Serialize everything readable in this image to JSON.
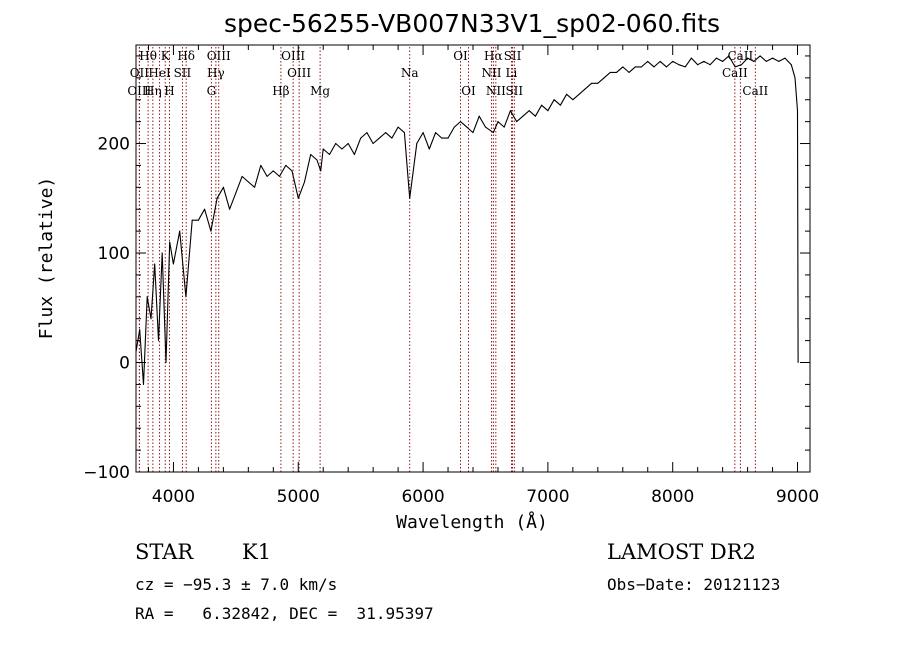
{
  "chart_data": {
    "type": "line",
    "title": "spec-56255-VB007N33V1_sp02-060.fits",
    "xlabel": "Wavelength (Å)",
    "ylabel": "Flux (relative)",
    "xlim": [
      3700,
      9100
    ],
    "ylim": [
      -100,
      290
    ],
    "xticks": [
      {
        "value": 4000,
        "label": "4000"
      },
      {
        "value": 5000,
        "label": "5000"
      },
      {
        "value": 6000,
        "label": "6000"
      },
      {
        "value": 7000,
        "label": "7000"
      },
      {
        "value": 8000,
        "label": "8000"
      },
      {
        "value": 9000,
        "label": "9000"
      }
    ],
    "yticks": [
      {
        "value": -100,
        "label": "−100"
      },
      {
        "value": 0,
        "label": "0"
      },
      {
        "value": 100,
        "label": "100"
      },
      {
        "value": 200,
        "label": "200"
      }
    ],
    "xminor_step": 200,
    "yminor_step": 20,
    "series": [
      {
        "name": "flux",
        "x": [
          3700,
          3730,
          3760,
          3790,
          3820,
          3850,
          3880,
          3910,
          3940,
          3970,
          4000,
          4050,
          4100,
          4150,
          4200,
          4250,
          4300,
          4350,
          4400,
          4450,
          4500,
          4550,
          4600,
          4650,
          4700,
          4750,
          4800,
          4850,
          4900,
          4950,
          5000,
          5050,
          5100,
          5150,
          5180,
          5200,
          5250,
          5300,
          5350,
          5400,
          5450,
          5500,
          5550,
          5600,
          5650,
          5700,
          5750,
          5800,
          5850,
          5893,
          5950,
          6000,
          6050,
          6100,
          6150,
          6200,
          6250,
          6300,
          6350,
          6400,
          6450,
          6500,
          6563,
          6600,
          6650,
          6700,
          6750,
          6800,
          6850,
          6900,
          6950,
          7000,
          7050,
          7100,
          7150,
          7200,
          7250,
          7300,
          7350,
          7400,
          7450,
          7500,
          7550,
          7600,
          7650,
          7700,
          7750,
          7800,
          7850,
          7900,
          7950,
          8000,
          8050,
          8100,
          8150,
          8200,
          8250,
          8300,
          8350,
          8400,
          8450,
          8500,
          8550,
          8600,
          8650,
          8700,
          8750,
          8800,
          8850,
          8900,
          8950,
          8980,
          9000,
          9005
        ],
        "y": [
          10,
          30,
          -20,
          60,
          40,
          90,
          20,
          100,
          0,
          110,
          90,
          120,
          60,
          130,
          130,
          140,
          120,
          150,
          160,
          140,
          155,
          170,
          165,
          160,
          180,
          170,
          175,
          170,
          180,
          175,
          150,
          165,
          190,
          185,
          175,
          195,
          190,
          200,
          195,
          200,
          190,
          205,
          210,
          200,
          205,
          210,
          205,
          215,
          210,
          150,
          200,
          210,
          195,
          210,
          205,
          205,
          215,
          220,
          215,
          210,
          225,
          215,
          210,
          220,
          215,
          230,
          220,
          225,
          230,
          225,
          235,
          230,
          240,
          235,
          245,
          240,
          245,
          250,
          255,
          255,
          260,
          265,
          265,
          270,
          265,
          270,
          270,
          275,
          270,
          275,
          270,
          275,
          272,
          270,
          278,
          272,
          275,
          272,
          278,
          275,
          280,
          270,
          272,
          278,
          275,
          280,
          275,
          278,
          275,
          278,
          272,
          260,
          230,
          0
        ]
      }
    ],
    "spectral_lines": [
      {
        "label": "Hθ",
        "x": 3797,
        "row": 0
      },
      {
        "label": "K",
        "x": 3934,
        "row": 0
      },
      {
        "label": "Hδ",
        "x": 4102,
        "row": 0
      },
      {
        "label": "OIII",
        "x": 4363,
        "row": 0
      },
      {
        "label": "OIII",
        "x": 4959,
        "row": 0
      },
      {
        "label": "OI",
        "x": 6300,
        "row": 0
      },
      {
        "label": "Hα",
        "x": 6563,
        "row": 0
      },
      {
        "label": "SII",
        "x": 6717,
        "row": 0
      },
      {
        "label": "CaII",
        "x": 8542,
        "row": 0
      },
      {
        "label": "OII",
        "x": 3727,
        "row": 1
      },
      {
        "label": "HeI",
        "x": 3889,
        "row": 1
      },
      {
        "label": "SII",
        "x": 4072,
        "row": 1
      },
      {
        "label": "Hγ",
        "x": 4340,
        "row": 1
      },
      {
        "label": "OIII",
        "x": 5007,
        "row": 1
      },
      {
        "label": "Na",
        "x": 5893,
        "row": 1
      },
      {
        "label": "NII",
        "x": 6548,
        "row": 1
      },
      {
        "label": "Li",
        "x": 6708,
        "row": 1
      },
      {
        "label": "CaII",
        "x": 8498,
        "row": 1
      },
      {
        "label": "OIII",
        "x": 3727,
        "row": 2
      },
      {
        "label": "Hη",
        "x": 3835,
        "row": 2
      },
      {
        "label": "H",
        "x": 3968,
        "row": 2
      },
      {
        "label": "G",
        "x": 4304,
        "row": 2
      },
      {
        "label": "Hβ",
        "x": 4861,
        "row": 2
      },
      {
        "label": "Mg",
        "x": 5175,
        "row": 2
      },
      {
        "label": "OI",
        "x": 6364,
        "row": 2
      },
      {
        "label": "NII",
        "x": 6583,
        "row": 2
      },
      {
        "label": "SII",
        "x": 6731,
        "row": 2
      },
      {
        "label": "CaII",
        "x": 8662,
        "row": 2
      }
    ],
    "line_color": "#8b0000"
  },
  "info": {
    "object_type": "STAR",
    "subclass": "K1",
    "redshift": "cz = −95.3 ± 7.0 km/s",
    "coordinates": "RA =   6.32842, DEC =  31.95397",
    "survey": "LAMOST DR2",
    "obs_date": "Obs−Date: 20121123"
  }
}
